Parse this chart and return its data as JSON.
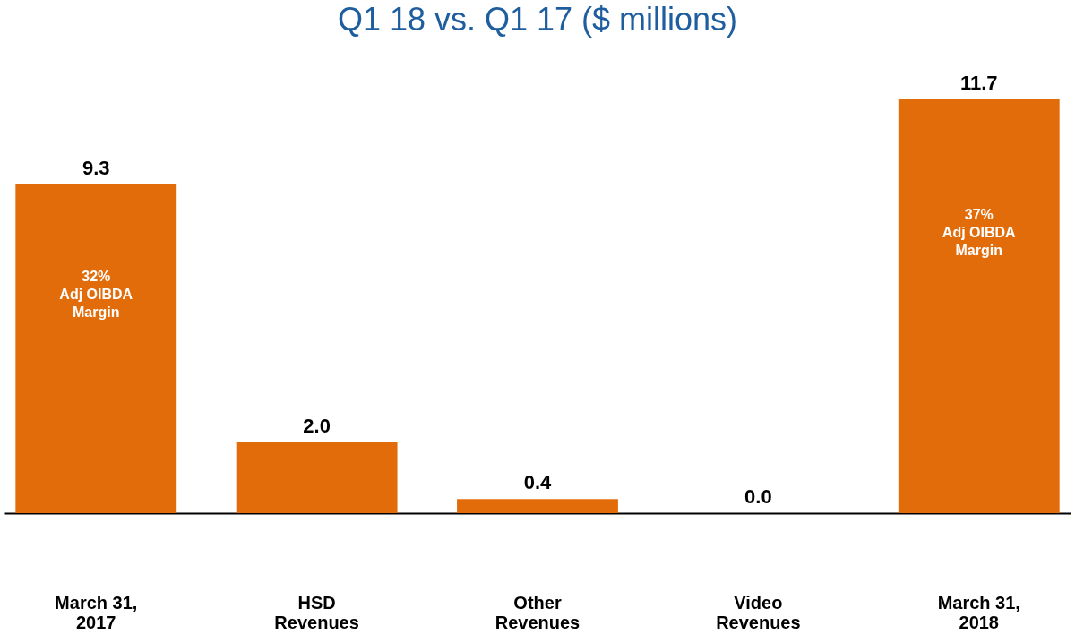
{
  "chart_data": {
    "type": "bar",
    "title": "Q1 18 vs. Q1 17 ($ millions)",
    "categories": [
      "March 31,\n2017",
      "HSD\nRevenues",
      "Other\nRevenues",
      "Video\nRevenues",
      "March 31,\n2018"
    ],
    "values": [
      9.3,
      2.0,
      0.4,
      0.0,
      11.7
    ],
    "value_labels": [
      "9.3",
      "2.0",
      "0.4",
      "0.0",
      "11.7"
    ],
    "color": "#e36c0a",
    "annotations": [
      "32%\nAdj OIBDA\nMargin",
      "37%\nAdj OIBDA\nMargin"
    ],
    "grid": false
  }
}
